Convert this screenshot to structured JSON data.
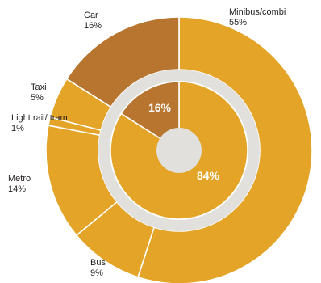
{
  "chart_data": {
    "type": "pie",
    "colors": {
      "public": "#e3a427",
      "private": "#b8752f",
      "stroke": "#ffffff",
      "center": "#e2e0dc"
    },
    "outer": [
      {
        "name": "Minibus/combi",
        "value": 55,
        "value_label": "55%",
        "group": "public"
      },
      {
        "name": "Bus",
        "value": 9,
        "value_label": "9%",
        "group": "public"
      },
      {
        "name": "Metro",
        "value": 14,
        "value_label": "14%",
        "group": "public"
      },
      {
        "name": "Light rail/ tram",
        "value": 1,
        "value_label": "1%",
        "group": "public"
      },
      {
        "name": "Taxi",
        "value": 5,
        "value_label": "5%",
        "group": "public"
      },
      {
        "name": "Car",
        "value": 16,
        "value_label": "16%",
        "group": "private"
      }
    ],
    "inner": [
      {
        "value": 84,
        "label": "84%",
        "group": "public"
      },
      {
        "value": 16,
        "label": "16%",
        "group": "private"
      }
    ]
  }
}
